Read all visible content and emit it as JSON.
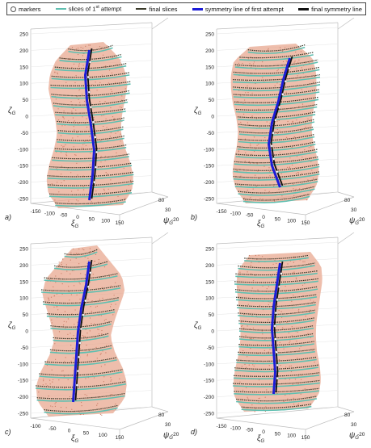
{
  "legend": {
    "markers": "markers",
    "slices1": "slices of 1",
    "slices1_sup": "st",
    "slices1_tail": " attempt",
    "final_slices": "final slices",
    "sym_first": "symmetry line of first attempt",
    "sym_final": "final symmetry line"
  },
  "colors": {
    "torso": "#e8a890",
    "slice_first": "#5fbfb0",
    "slice_final": "#3a3a2a",
    "sym_first": "#1c1cd8",
    "sym_final": "#111111",
    "markers": "#ffffff"
  },
  "chart_data": [
    {
      "type": "scatter",
      "panel": "a)",
      "zlabel": "ζ",
      "zlabel_sub": "G",
      "xlabel": "ξ",
      "xlabel_sub": "G",
      "ylabel": "ψ",
      "ylabel_sub": "G",
      "z_ticks": [
        "250",
        "200",
        "150",
        "100",
        "50",
        "0",
        "-50",
        "-100",
        "-150",
        "-200",
        "-250"
      ],
      "x_ticks": [
        "-150",
        "-100",
        "-50",
        "0",
        "50",
        "100",
        "150"
      ],
      "y_ticks": [
        "80",
        "30",
        "-20"
      ],
      "series": [
        "markers",
        "slices of 1st attempt",
        "final slices",
        "symmetry line of first attempt",
        "final symmetry line"
      ]
    },
    {
      "type": "scatter",
      "panel": "b)",
      "zlabel": "ζ",
      "zlabel_sub": "G",
      "xlabel": "ξ",
      "xlabel_sub": "G",
      "ylabel": "ψ",
      "ylabel_sub": "G",
      "z_ticks": [
        "250",
        "200",
        "150",
        "100",
        "50",
        "0",
        "-50",
        "-100",
        "-150",
        "-200",
        "-250"
      ],
      "x_ticks": [
        "-150",
        "-100",
        "-50",
        "0",
        "50",
        "100",
        "150"
      ],
      "y_ticks": [
        "80",
        "30",
        "-20"
      ],
      "series": [
        "markers",
        "slices of 1st attempt",
        "final slices",
        "symmetry line of first attempt",
        "final symmetry line"
      ]
    },
    {
      "type": "scatter",
      "panel": "c)",
      "zlabel": "ζ",
      "zlabel_sub": "G",
      "xlabel": "ξ",
      "xlabel_sub": "G",
      "ylabel": "ψ",
      "ylabel_sub": "G",
      "z_ticks": [
        "250",
        "200",
        "150",
        "100",
        "50",
        "0",
        "-50",
        "-100",
        "-150",
        "-200",
        "-250"
      ],
      "x_ticks": [
        "-100",
        "-50",
        "0",
        "50",
        "100",
        "150"
      ],
      "y_ticks": [
        "80",
        "30",
        "-20"
      ],
      "series": [
        "markers",
        "slices of 1st attempt",
        "final slices",
        "symmetry line of first attempt",
        "final symmetry line"
      ]
    },
    {
      "type": "scatter",
      "panel": "d)",
      "zlabel": "ζ",
      "zlabel_sub": "G",
      "xlabel": "ξ",
      "xlabel_sub": "G",
      "ylabel": "ψ",
      "ylabel_sub": "G",
      "z_ticks": [
        "250",
        "200",
        "150",
        "100",
        "50",
        "0",
        "-50",
        "-100",
        "-150",
        "-200",
        "-250"
      ],
      "x_ticks": [
        "-150",
        "-100",
        "-50",
        "0",
        "50",
        "100",
        "150"
      ],
      "y_ticks": [
        "80",
        "30",
        "-20"
      ],
      "series": [
        "markers",
        "slices of 1st attempt",
        "final slices",
        "symmetry line of first attempt",
        "final symmetry line"
      ]
    }
  ]
}
